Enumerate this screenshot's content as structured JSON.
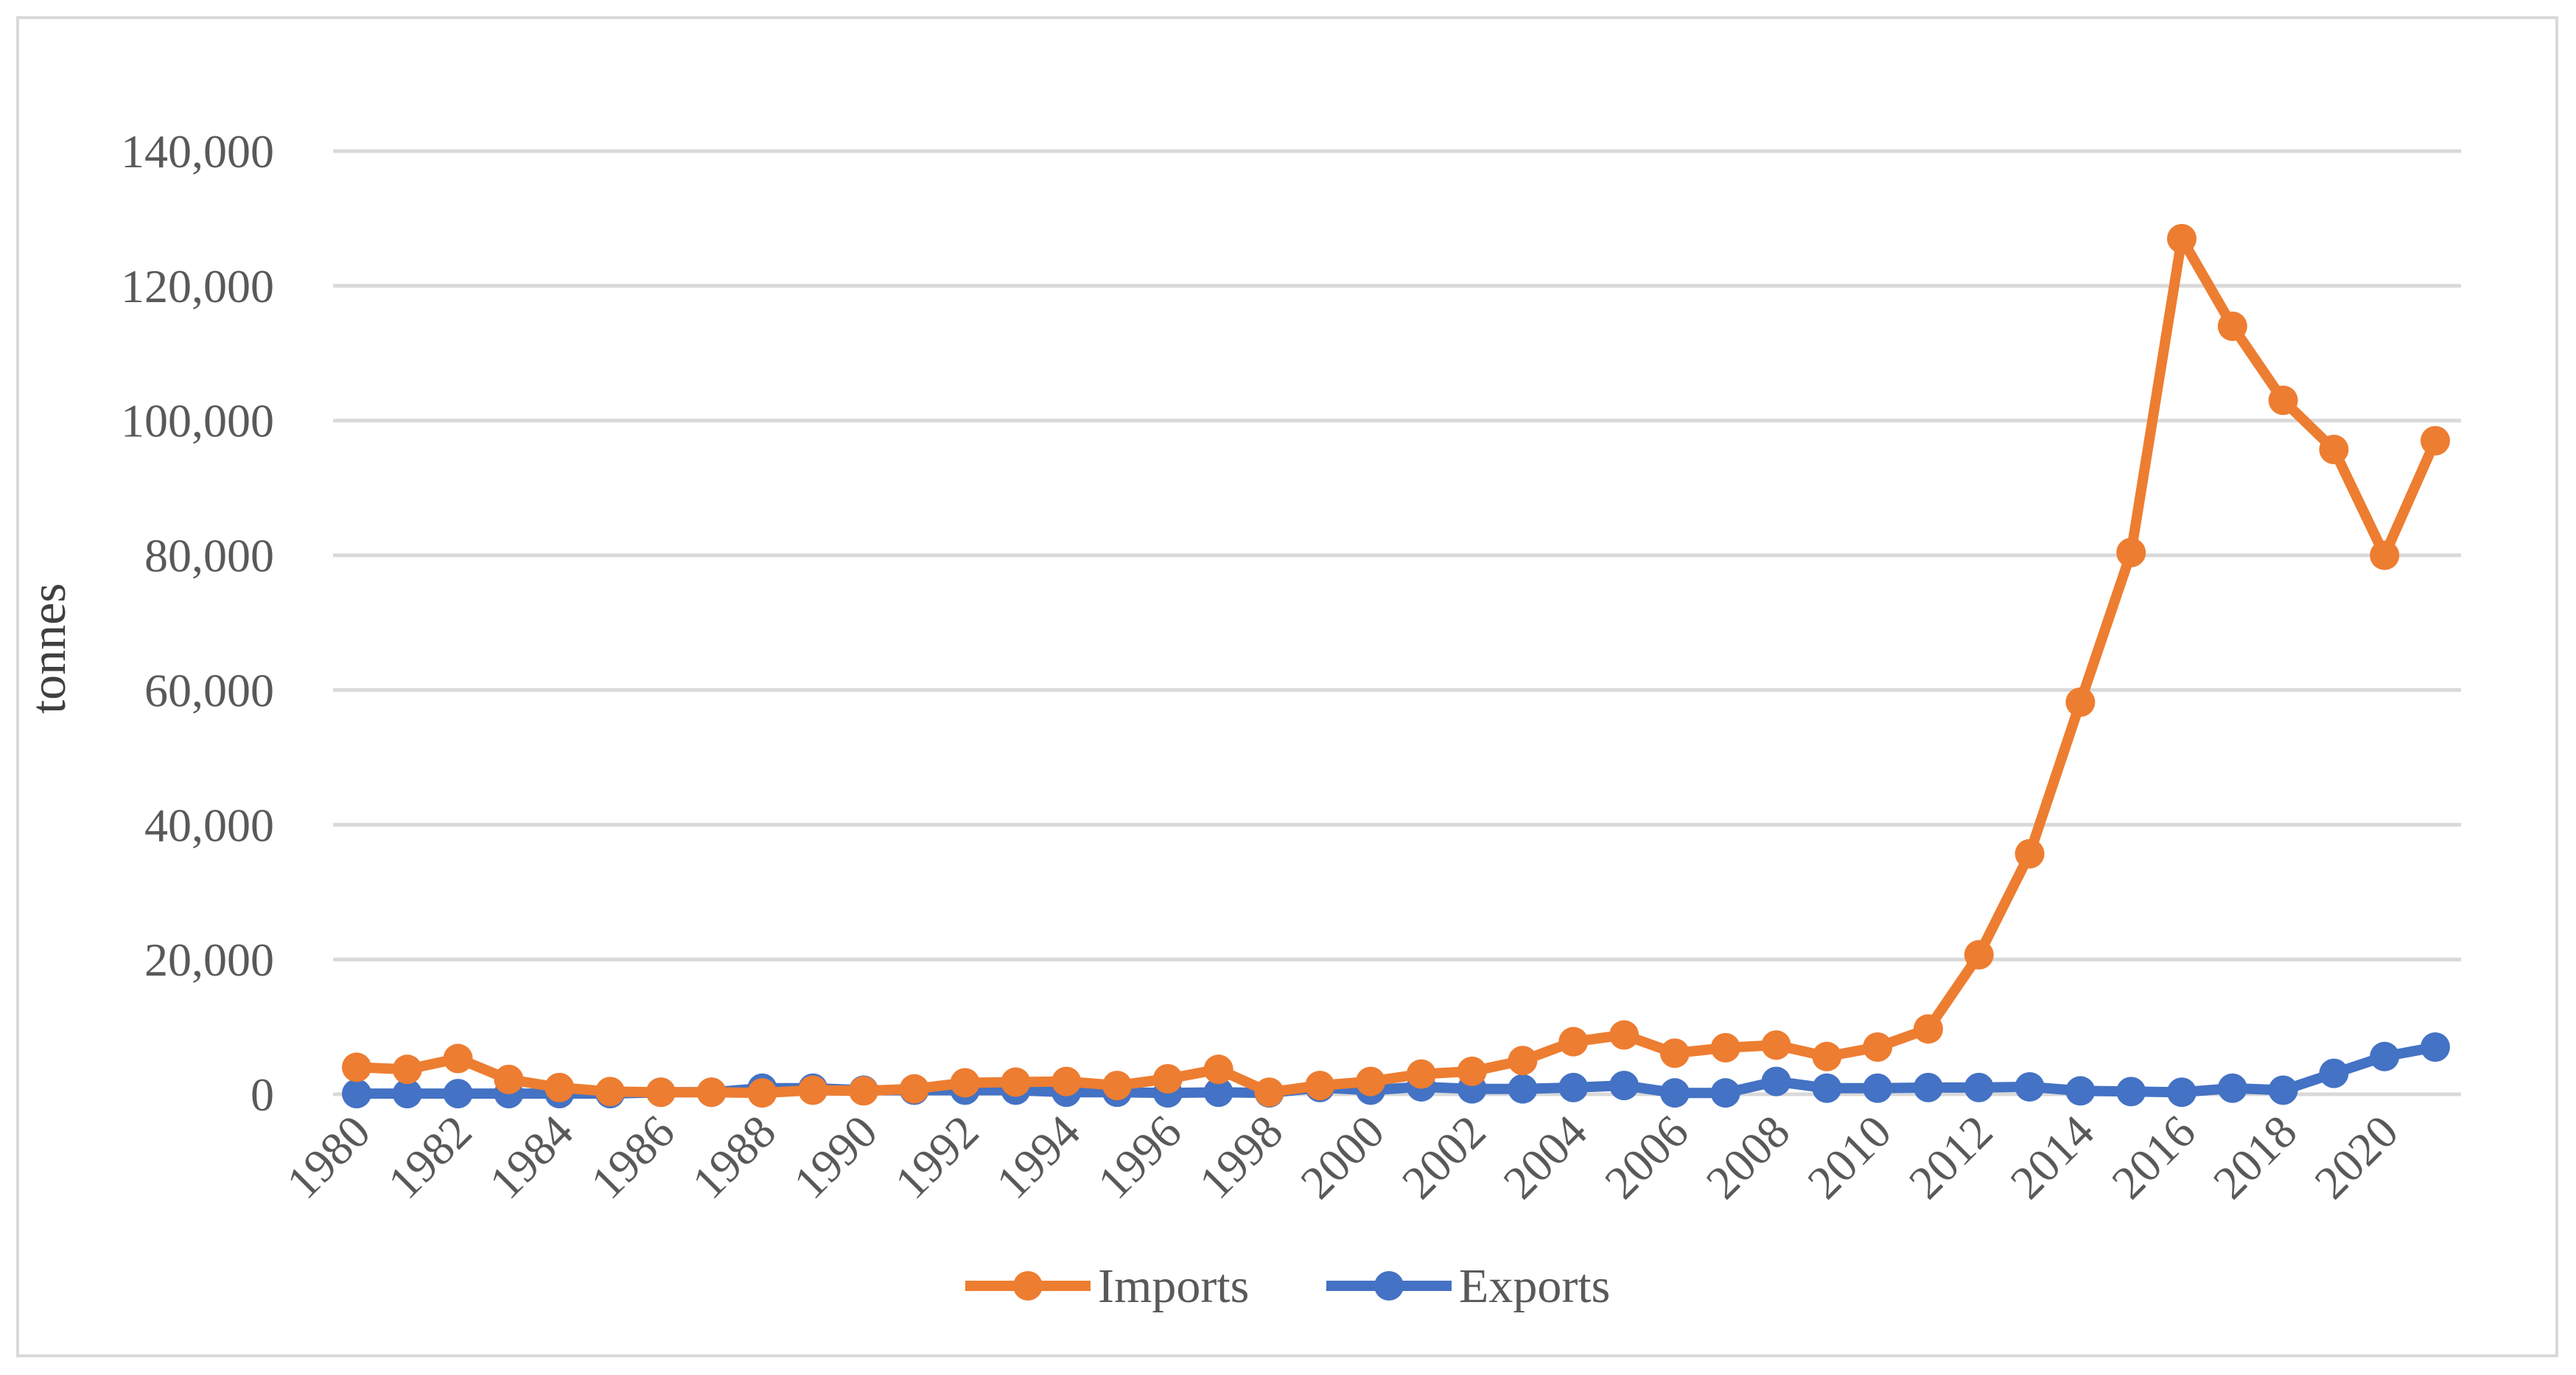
{
  "chart_data": {
    "type": "line",
    "title": "",
    "xlabel": "",
    "ylabel": "tonnes",
    "ylim": [
      0,
      140000
    ],
    "y_ticks": [
      0,
      20000,
      40000,
      60000,
      80000,
      100000,
      120000,
      140000
    ],
    "y_tick_labels": [
      "0",
      "20,000",
      "40,000",
      "60,000",
      "80,000",
      "100,000",
      "120,000",
      "140,000"
    ],
    "x": [
      1980,
      1981,
      1982,
      1983,
      1984,
      1985,
      1986,
      1987,
      1988,
      1989,
      1990,
      1991,
      1992,
      1993,
      1994,
      1995,
      1996,
      1997,
      1998,
      1999,
      2000,
      2001,
      2002,
      2003,
      2004,
      2005,
      2006,
      2007,
      2008,
      2009,
      2010,
      2011,
      2012,
      2013,
      2014,
      2015,
      2016,
      2017,
      2018,
      2019,
      2020,
      2021
    ],
    "x_tick_labels": [
      "1980",
      "1982",
      "1984",
      "1986",
      "1988",
      "1990",
      "1992",
      "1994",
      "1996",
      "1998",
      "2000",
      "2002",
      "2004",
      "2006",
      "2008",
      "2010",
      "2012",
      "2014",
      "2016",
      "2018",
      "2020"
    ],
    "grid": true,
    "legend_position": "bottom",
    "series": [
      {
        "name": "Imports",
        "color": "#ed7d31",
        "values": [
          4000,
          3700,
          5300,
          2200,
          1000,
          400,
          300,
          300,
          200,
          600,
          500,
          800,
          1700,
          1800,
          1900,
          1300,
          2300,
          3700,
          300,
          1300,
          1900,
          3000,
          3400,
          5000,
          7800,
          8800,
          6100,
          6900,
          7300,
          5600,
          7000,
          9700,
          20700,
          35700,
          58200,
          80400,
          127000,
          114000,
          103000,
          95700,
          80000,
          97000
        ]
      },
      {
        "name": "Exports",
        "color": "#4472c4",
        "values": [
          100,
          100,
          100,
          100,
          100,
          100,
          300,
          300,
          900,
          900,
          600,
          600,
          600,
          600,
          300,
          300,
          200,
          300,
          200,
          1000,
          600,
          1100,
          800,
          800,
          1000,
          1300,
          200,
          200,
          1900,
          900,
          900,
          1000,
          1000,
          1100,
          500,
          400,
          300,
          900,
          600,
          3100,
          5600,
          7000
        ]
      }
    ]
  }
}
